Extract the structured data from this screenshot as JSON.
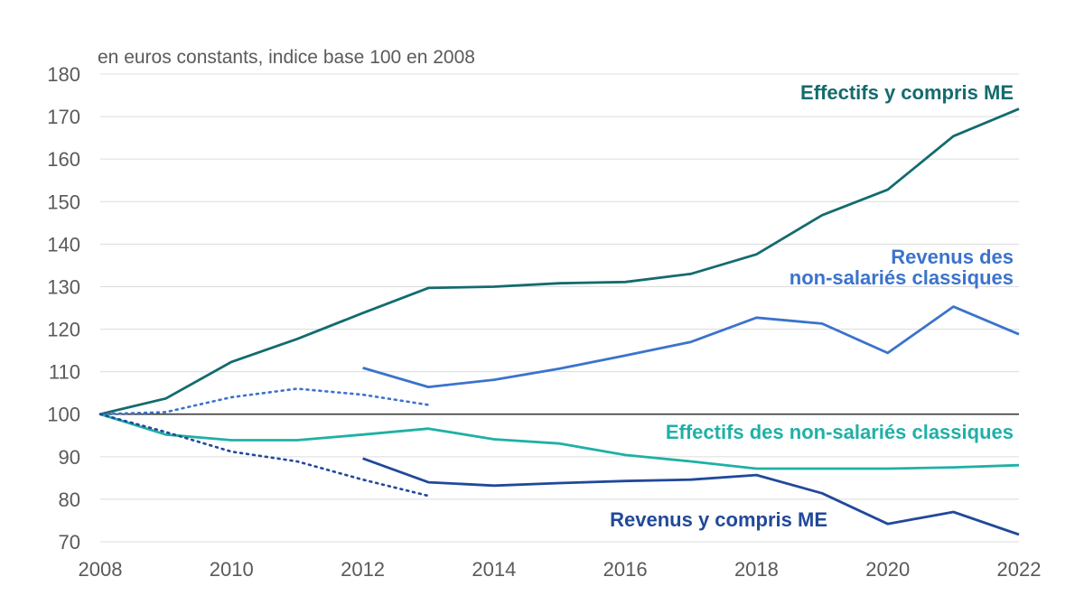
{
  "chart_data": {
    "type": "line",
    "unit_label": "en euros constants, indice base 100 en 2008",
    "xlim": [
      2008,
      2022
    ],
    "ylim": [
      70,
      180
    ],
    "x_ticks": [
      2008,
      2010,
      2012,
      2014,
      2016,
      2018,
      2020,
      2022
    ],
    "y_ticks": [
      70,
      80,
      90,
      100,
      110,
      120,
      130,
      140,
      150,
      160,
      170,
      180
    ],
    "grid": true,
    "reference_line": 100,
    "series": [
      {
        "name": "Effectifs y compris ME",
        "color": "#136b6e",
        "style": "solid",
        "x": [
          2008,
          2009,
          2010,
          2011,
          2012,
          2013,
          2014,
          2015,
          2016,
          2017,
          2018,
          2019,
          2020,
          2021,
          2022
        ],
        "y": [
          100,
          103.7,
          112.3,
          117.7,
          123.8,
          129.7,
          130.0,
          130.8,
          131.1,
          133.0,
          137.6,
          146.8,
          152.8,
          165.4,
          171.8
        ]
      },
      {
        "name": "Revenus des non-salariés classiques",
        "label_lines": [
          "Revenus des",
          "non-salariés classiques"
        ],
        "color": "#3b73cc",
        "style": "solid",
        "x": [
          2012,
          2013,
          2014,
          2015,
          2016,
          2017,
          2018,
          2019,
          2020,
          2021,
          2022
        ],
        "y": [
          110.9,
          106.4,
          108.1,
          110.7,
          113.8,
          117.0,
          122.7,
          121.3,
          114.4,
          125.3,
          118.8
        ]
      },
      {
        "name": "Effectifs des non-salariés classiques",
        "color": "#1fb0a6",
        "style": "solid",
        "x": [
          2008,
          2009,
          2010,
          2011,
          2012,
          2013,
          2014,
          2015,
          2016,
          2017,
          2018,
          2019,
          2020,
          2021,
          2022
        ],
        "y": [
          100,
          95.2,
          93.9,
          93.9,
          95.2,
          96.6,
          94.1,
          93.1,
          90.4,
          88.9,
          87.2,
          87.2,
          87.2,
          87.5,
          88.0
        ]
      },
      {
        "name": "Revenus y compris ME",
        "color": "#21499a",
        "style": "solid",
        "x": [
          2012,
          2013,
          2014,
          2015,
          2016,
          2017,
          2018,
          2019,
          2020,
          2021,
          2022
        ],
        "y": [
          89.6,
          84.0,
          83.2,
          83.8,
          84.3,
          84.6,
          85.7,
          81.4,
          74.2,
          77.0,
          71.7
        ]
      },
      {
        "color": "#3b73cc",
        "style": "dotted",
        "x": [
          2008,
          2009,
          2010,
          2011,
          2012,
          2013
        ],
        "y": [
          100,
          100.5,
          104.0,
          106.0,
          104.6,
          102.2
        ]
      },
      {
        "color": "#21499a",
        "style": "dotted",
        "x": [
          2008,
          2009,
          2010,
          2011,
          2012,
          2013
        ],
        "y": [
          100,
          95.8,
          91.2,
          88.9,
          84.6,
          80.8
        ]
      }
    ]
  }
}
